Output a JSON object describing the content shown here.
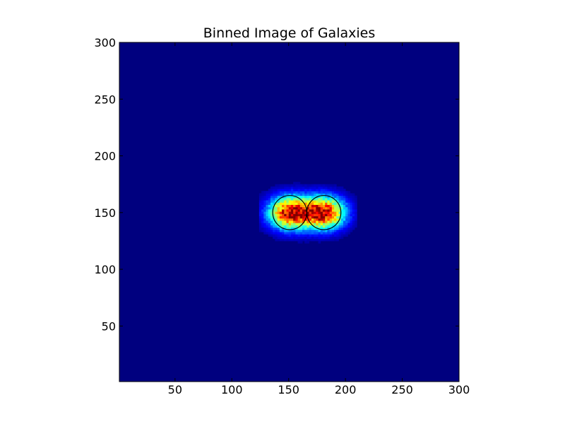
{
  "chart_data": {
    "type": "heatmap",
    "title": "Binned Image of Galaxies",
    "xlabel": "",
    "ylabel": "",
    "xlim": [
      1,
      300
    ],
    "ylim": [
      1,
      300
    ],
    "xticks": [
      50,
      100,
      150,
      200,
      250,
      300
    ],
    "yticks": [
      50,
      100,
      150,
      200,
      250,
      300
    ],
    "colormap": "jet",
    "background_value": 0,
    "galaxies": [
      {
        "x": 151,
        "y": 150,
        "circle_radius": 15
      },
      {
        "x": 181,
        "y": 150,
        "circle_radius": 15
      }
    ],
    "circle_color": "#000000"
  }
}
